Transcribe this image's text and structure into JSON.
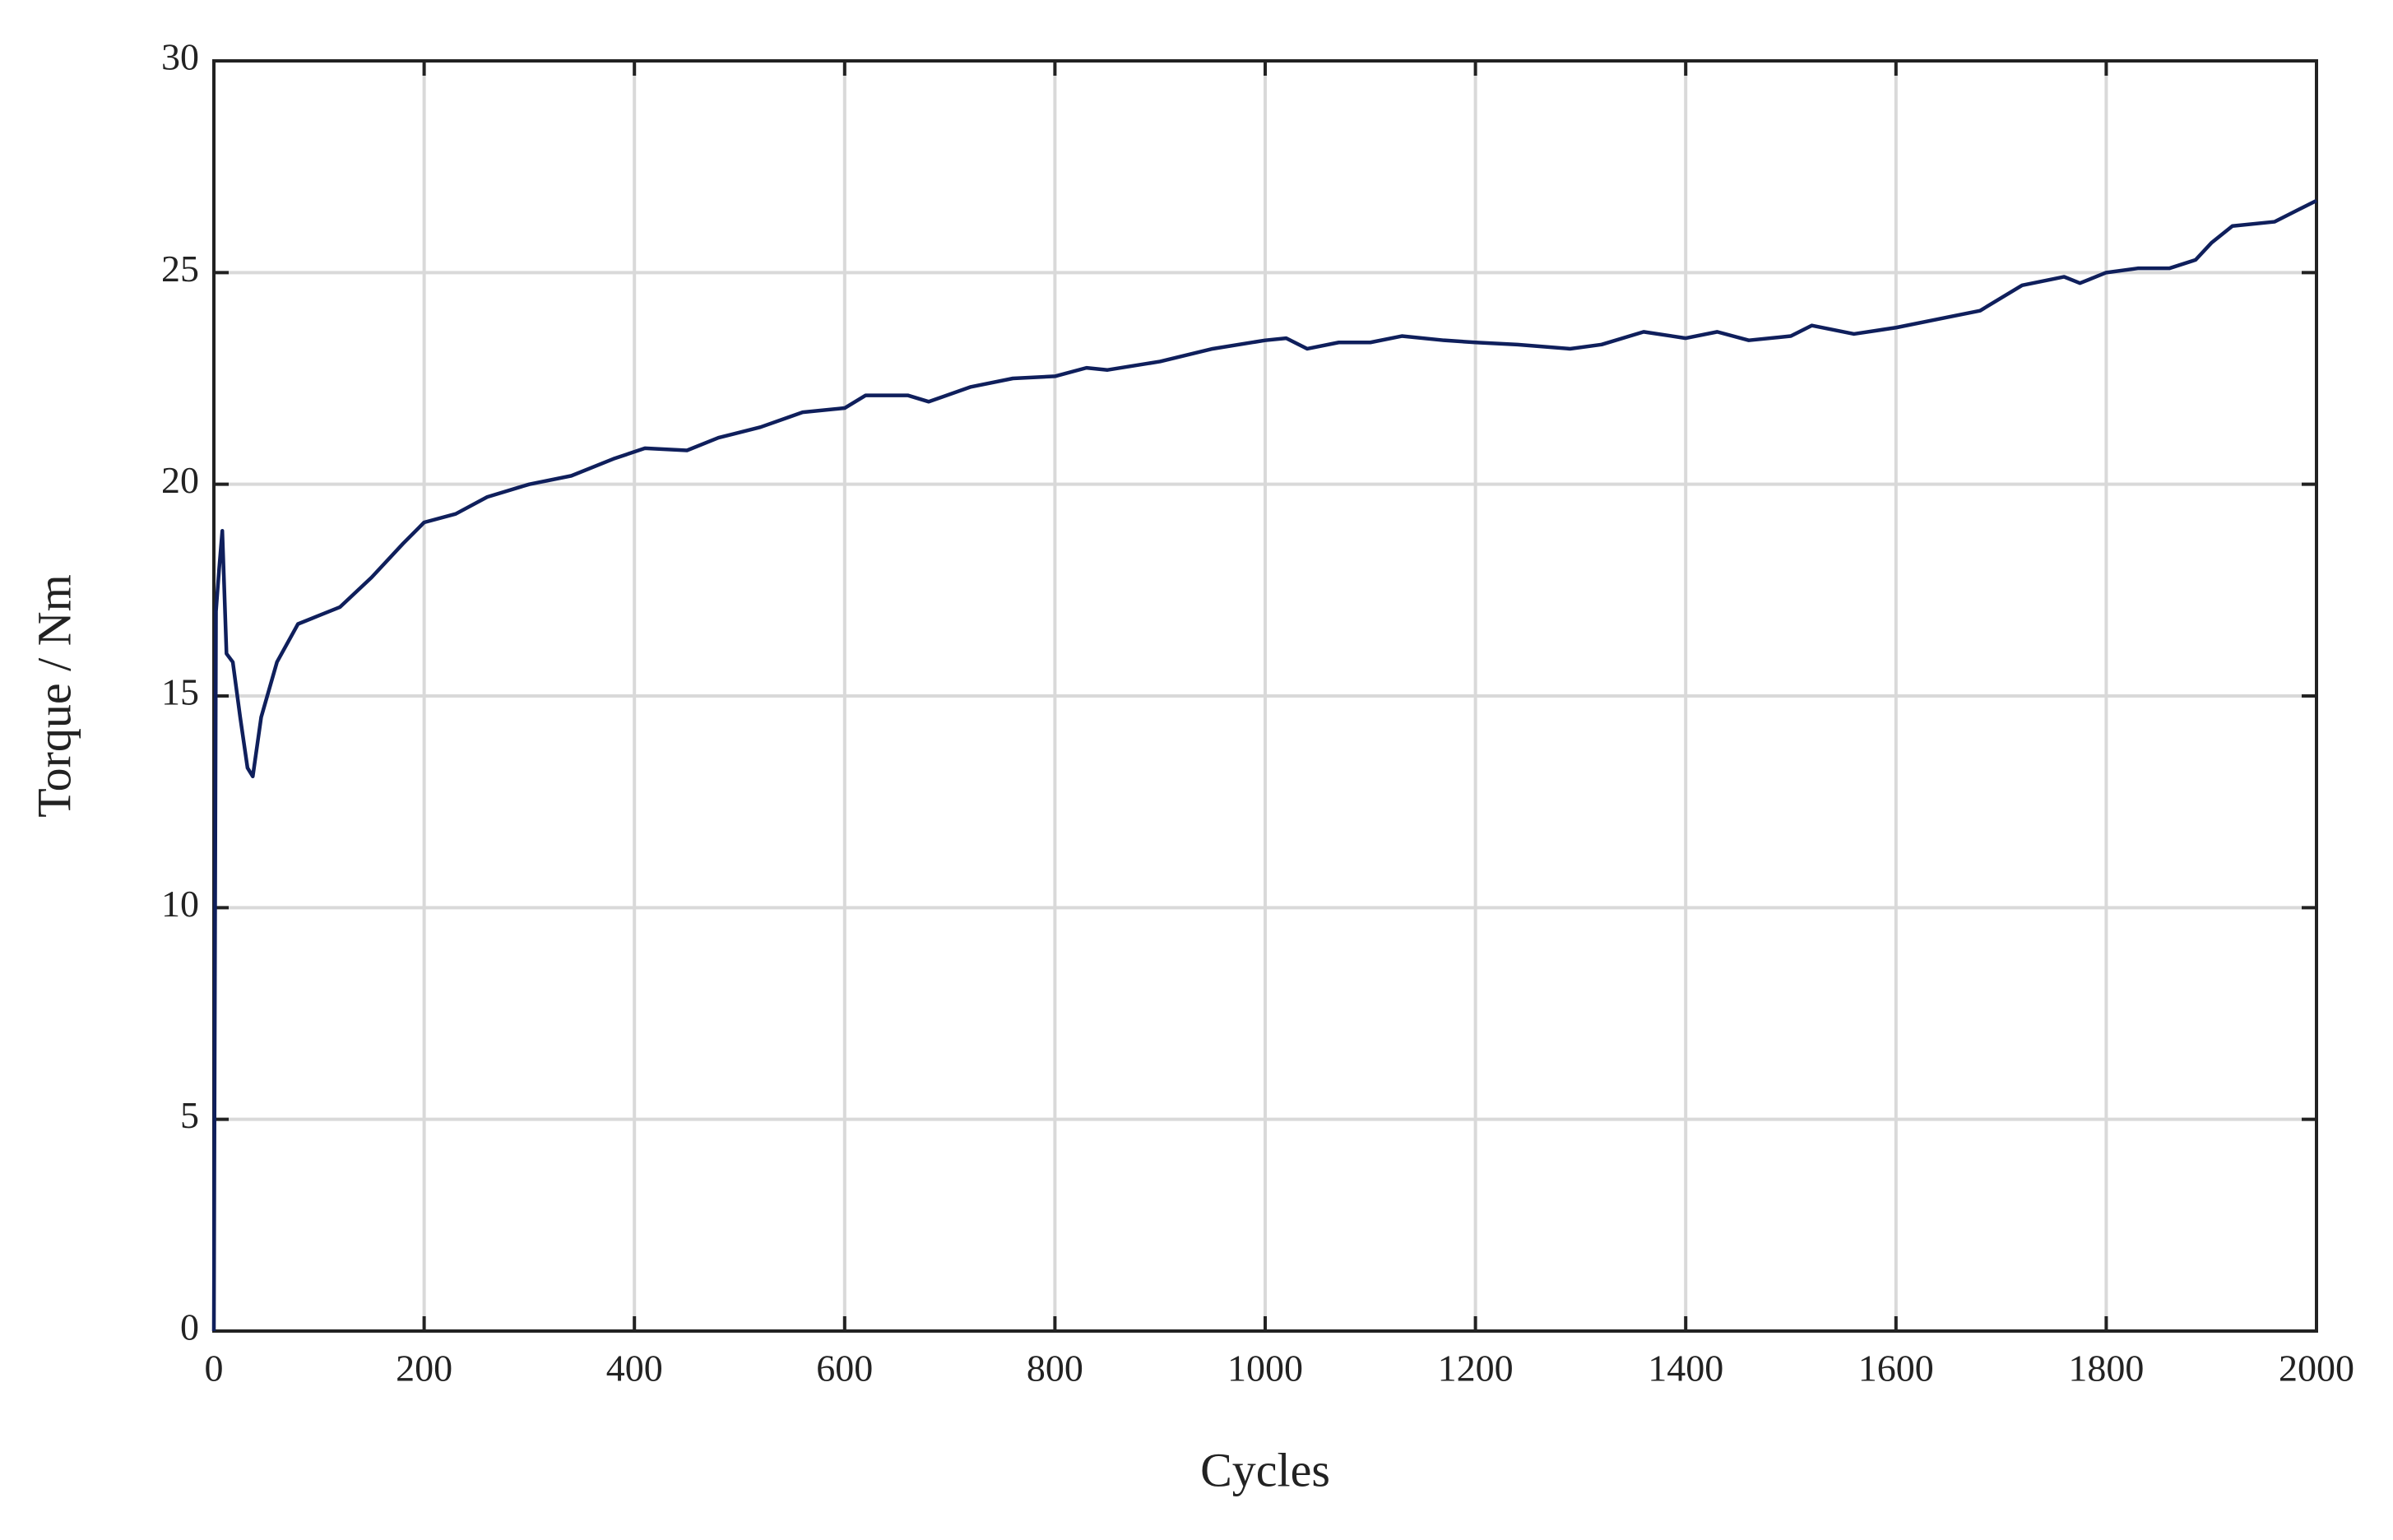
{
  "chart_data": {
    "type": "line",
    "x_label": "Cycles",
    "y_label": "Torque / Nm",
    "series": [
      {
        "name": "Torque",
        "color": "#0f1f5c",
        "x": [
          0,
          2,
          5,
          8,
          12,
          18,
          25,
          32,
          37,
          45,
          60,
          80,
          100,
          120,
          150,
          180,
          200,
          230,
          260,
          300,
          340,
          380,
          410,
          450,
          480,
          520,
          560,
          600,
          620,
          660,
          680,
          720,
          760,
          800,
          830,
          850,
          900,
          950,
          1000,
          1020,
          1040,
          1070,
          1100,
          1130,
          1170,
          1200,
          1240,
          1290,
          1320,
          1360,
          1400,
          1430,
          1460,
          1500,
          1520,
          1560,
          1600,
          1640,
          1680,
          1720,
          1760,
          1775,
          1800,
          1830,
          1860,
          1885,
          1900,
          1920,
          1960,
          2000
        ],
        "values": [
          0,
          17,
          18,
          18.9,
          16,
          15.8,
          14.5,
          13.3,
          13.1,
          14.5,
          15.8,
          16.7,
          16.9,
          17.1,
          17.8,
          18.6,
          19.1,
          19.3,
          19.7,
          20.0,
          20.2,
          20.6,
          20.85,
          20.8,
          21.1,
          21.35,
          21.7,
          21.8,
          22.1,
          22.1,
          21.95,
          22.3,
          22.5,
          22.55,
          22.75,
          22.7,
          22.9,
          23.2,
          23.4,
          23.45,
          23.2,
          23.35,
          23.35,
          23.5,
          23.4,
          23.35,
          23.3,
          23.2,
          23.3,
          23.6,
          23.45,
          23.6,
          23.4,
          23.5,
          23.75,
          23.55,
          23.7,
          23.9,
          24.1,
          24.7,
          24.9,
          24.75,
          25.0,
          25.1,
          25.1,
          25.3,
          25.7,
          26.1,
          26.2,
          26.7
        ]
      }
    ],
    "xlim": [
      0,
      2000
    ],
    "xticks": [
      0,
      200,
      400,
      600,
      800,
      1000,
      1200,
      1400,
      1600,
      1800,
      2000
    ],
    "ylim": [
      0,
      30
    ],
    "yticks": [
      0,
      5,
      10,
      15,
      20,
      25,
      30
    ],
    "grid": true
  }
}
